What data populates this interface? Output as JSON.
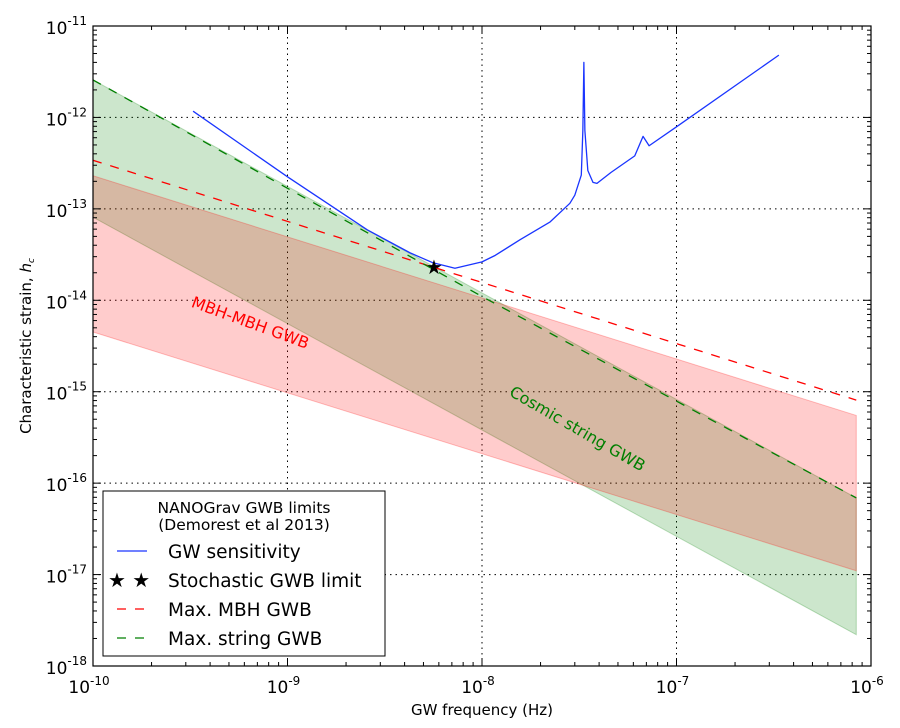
{
  "chart_data": {
    "type": "line",
    "title": "",
    "xlabel": "GW frequency (Hz)",
    "ylabel_prefix": "Characteristic strain, ",
    "ylabel_symbol": "h",
    "ylabel_sub": "c",
    "xscale": "log",
    "yscale": "log",
    "xlim": [
      1e-10,
      1e-06
    ],
    "ylim": [
      1e-18,
      1e-11
    ],
    "grid": true,
    "x_ticks": [
      {
        "base": "10",
        "exp": "-10",
        "v": 1e-10
      },
      {
        "base": "10",
        "exp": "-9",
        "v": 1e-09
      },
      {
        "base": "10",
        "exp": "-8",
        "v": 1e-08
      },
      {
        "base": "10",
        "exp": "-7",
        "v": 1e-07
      },
      {
        "base": "10",
        "exp": "-6",
        "v": 1e-06
      }
    ],
    "y_ticks": [
      {
        "base": "10",
        "exp": "-11",
        "v": 1e-11
      },
      {
        "base": "10",
        "exp": "-12",
        "v": 1e-12
      },
      {
        "base": "10",
        "exp": "-13",
        "v": 1e-13
      },
      {
        "base": "10",
        "exp": "-14",
        "v": 1e-14
      },
      {
        "base": "10",
        "exp": "-15",
        "v": 1e-15
      },
      {
        "base": "10",
        "exp": "-16",
        "v": 1e-16
      },
      {
        "base": "10",
        "exp": "-17",
        "v": 1e-17
      },
      {
        "base": "10",
        "exp": "-18",
        "v": 1e-18
      }
    ],
    "bands": [
      {
        "name": "Cosmic string GWB",
        "color": "#008000",
        "opacity": 0.2,
        "f": [
          1e-10,
          8.4e-07
        ],
        "upper": [
          2.57e-12,
          6.9e-17
        ],
        "lower": [
          8.1e-14,
          2.2e-18
        ]
      },
      {
        "name": "MBH-MBH GWB",
        "color": "#ff0000",
        "opacity": 0.2,
        "f": [
          1e-10,
          8.4e-07
        ],
        "upper": [
          2.3e-13,
          5.5e-16
        ],
        "lower": [
          4.5e-15,
          1.1e-17
        ]
      }
    ],
    "series": [
      {
        "name": "GW sensitivity",
        "style": "solid",
        "color": "#1a35ff",
        "f": [
          3.27e-10,
          1e-09,
          2.57e-09,
          4.27e-09,
          5.6e-09,
          7.26e-09,
          1e-08,
          1.17e-08,
          1.57e-08,
          2.24e-08,
          2.83e-08,
          3e-08,
          3.24e-08,
          3.3e-08,
          3.34e-08,
          3.38e-08,
          3.5e-08,
          3.72e-08,
          3.9e-08,
          4.6e-08,
          6.1e-08,
          6.73e-08,
          7.23e-08,
          1e-07,
          3.36e-07
        ],
        "h": [
          1.17e-12,
          2.24e-13,
          5.9e-14,
          3.3e-14,
          2.57e-14,
          2.24e-14,
          2.63e-14,
          3.1e-14,
          4.6e-14,
          7.2e-14,
          1.15e-13,
          1.41e-13,
          2.34e-13,
          7.2e-13,
          4e-12,
          7.2e-13,
          2.63e-13,
          1.95e-13,
          1.9e-13,
          2.5e-13,
          3.8e-13,
          6.2e-13,
          4.9e-13,
          7.9e-13,
          4.8e-12
        ]
      },
      {
        "name": "Stochastic GWB limit",
        "style": "star",
        "color": "#000000",
        "f": [
          5.66e-09
        ],
        "h": [
          2.3e-14
        ]
      },
      {
        "name": "Max. MBH GWB",
        "style": "dashed",
        "color": "#ff0000",
        "f": [
          1e-10,
          8.4e-07
        ],
        "h": [
          3.4e-13,
          8.1e-16
        ]
      },
      {
        "name": "Max. string GWB",
        "style": "dashed",
        "color": "#007f00",
        "f": [
          1e-10,
          1e-08,
          8.4e-07
        ],
        "h": [
          2.57e-12,
          1.1e-14,
          6.9e-17
        ]
      }
    ],
    "annotations": [
      {
        "text": "MBH-MBH GWB",
        "color": "#ff0000",
        "f": 6.3e-10,
        "h": 5e-15,
        "angle": 20
      },
      {
        "text": "Cosmic string GWB",
        "color": "#007f00",
        "f": 3e-08,
        "h": 3.5e-16,
        "angle": 30
      }
    ],
    "legend": {
      "placement": "lower-left",
      "title_line1": "NANOGrav GWB limits",
      "title_line2": "(Demorest et al 2013)",
      "entries": [
        "GW sensitivity",
        "Stochastic GWB limit",
        "Max. MBH GWB",
        "Max. string GWB"
      ]
    }
  }
}
